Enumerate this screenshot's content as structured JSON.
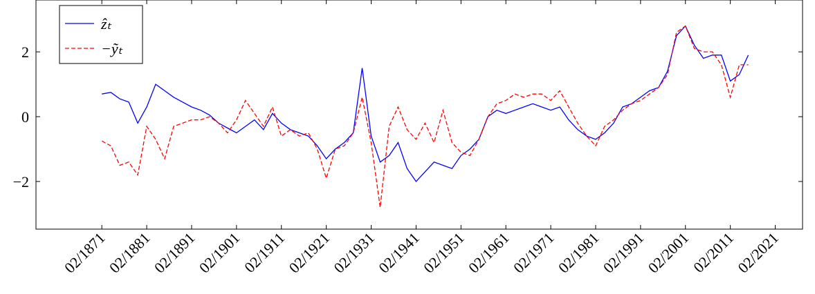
{
  "chart_data": {
    "type": "line",
    "x": [
      "02/1871",
      "02/1873",
      "02/1875",
      "02/1877",
      "02/1879",
      "02/1881",
      "02/1883",
      "02/1885",
      "02/1887",
      "02/1889",
      "02/1891",
      "02/1893",
      "02/1895",
      "02/1897",
      "02/1899",
      "02/1901",
      "02/1903",
      "02/1905",
      "02/1907",
      "02/1909",
      "02/1911",
      "02/1913",
      "02/1915",
      "02/1917",
      "02/1919",
      "02/1921",
      "02/1923",
      "02/1925",
      "02/1927",
      "02/1929",
      "02/1931",
      "02/1933",
      "02/1935",
      "02/1937",
      "02/1939",
      "02/1941",
      "02/1943",
      "02/1945",
      "02/1947",
      "02/1949",
      "02/1951",
      "02/1953",
      "02/1955",
      "02/1957",
      "02/1959",
      "02/1961",
      "02/1963",
      "02/1965",
      "02/1967",
      "02/1969",
      "02/1971",
      "02/1973",
      "02/1975",
      "02/1977",
      "02/1979",
      "02/1981",
      "02/1983",
      "02/1985",
      "02/1987",
      "02/1989",
      "02/1991",
      "02/1993",
      "02/1995",
      "02/1997",
      "02/1999",
      "02/2001",
      "02/2003",
      "02/2005",
      "02/2007",
      "02/2009",
      "02/2011",
      "02/2013",
      "02/2015"
    ],
    "series": [
      {
        "name": "ẑₜ",
        "color": "#0000ff",
        "dash": false,
        "values": [
          0.7,
          0.75,
          0.55,
          0.45,
          -0.2,
          0.3,
          1.0,
          0.8,
          0.6,
          0.45,
          0.3,
          0.2,
          0.05,
          -0.2,
          -0.35,
          -0.5,
          -0.3,
          -0.1,
          -0.4,
          0.1,
          -0.2,
          -0.4,
          -0.5,
          -0.6,
          -0.9,
          -1.3,
          -1.0,
          -0.8,
          -0.5,
          1.5,
          -0.6,
          -1.4,
          -1.2,
          -0.8,
          -1.6,
          -2.0,
          -1.7,
          -1.4,
          -1.5,
          -1.6,
          -1.2,
          -1.0,
          -0.7,
          0.0,
          0.2,
          0.1,
          0.2,
          0.3,
          0.4,
          0.3,
          0.2,
          0.3,
          -0.1,
          -0.4,
          -0.6,
          -0.7,
          -0.5,
          -0.2,
          0.3,
          0.4,
          0.6,
          0.8,
          0.9,
          1.4,
          2.5,
          2.8,
          2.2,
          1.8,
          1.9,
          1.9,
          1.1,
          1.3,
          1.9
        ]
      },
      {
        "name": "−ỹₜ",
        "color": "#ff0000",
        "dash": true,
        "values": [
          -0.75,
          -0.9,
          -1.5,
          -1.4,
          -1.8,
          -0.3,
          -0.7,
          -1.3,
          -0.3,
          -0.2,
          -0.1,
          -0.1,
          0.0,
          -0.2,
          -0.5,
          -0.1,
          0.5,
          0.1,
          -0.3,
          0.3,
          -0.6,
          -0.4,
          -0.6,
          -0.5,
          -1.0,
          -1.9,
          -1.0,
          -0.9,
          -0.5,
          0.6,
          -0.8,
          -2.8,
          -0.3,
          0.3,
          -0.4,
          -0.7,
          -0.2,
          -0.8,
          0.2,
          -0.8,
          -1.1,
          -1.2,
          -0.7,
          0.0,
          0.4,
          0.5,
          0.7,
          0.6,
          0.7,
          0.7,
          0.5,
          0.8,
          0.3,
          -0.2,
          -0.6,
          -0.9,
          -0.3,
          -0.1,
          0.2,
          0.4,
          0.5,
          0.7,
          0.9,
          1.3,
          2.6,
          2.8,
          2.1,
          2.0,
          2.0,
          1.6,
          0.6,
          1.6,
          1.6
        ]
      }
    ],
    "xlim": [
      "06/1856",
      "03/2027"
    ],
    "xticks": [
      "02/1871",
      "02/1881",
      "02/1891",
      "02/1901",
      "02/1911",
      "02/1921",
      "02/1931",
      "02/1941",
      "02/1951",
      "02/1961",
      "02/1971",
      "02/1981",
      "02/1991",
      "02/2001",
      "02/2011",
      "02/2021"
    ],
    "ylim": [
      -3.47,
      3.6
    ],
    "yticks": [
      {
        "value": -2,
        "label": "−2"
      },
      0,
      2
    ],
    "legend": "top-left"
  }
}
